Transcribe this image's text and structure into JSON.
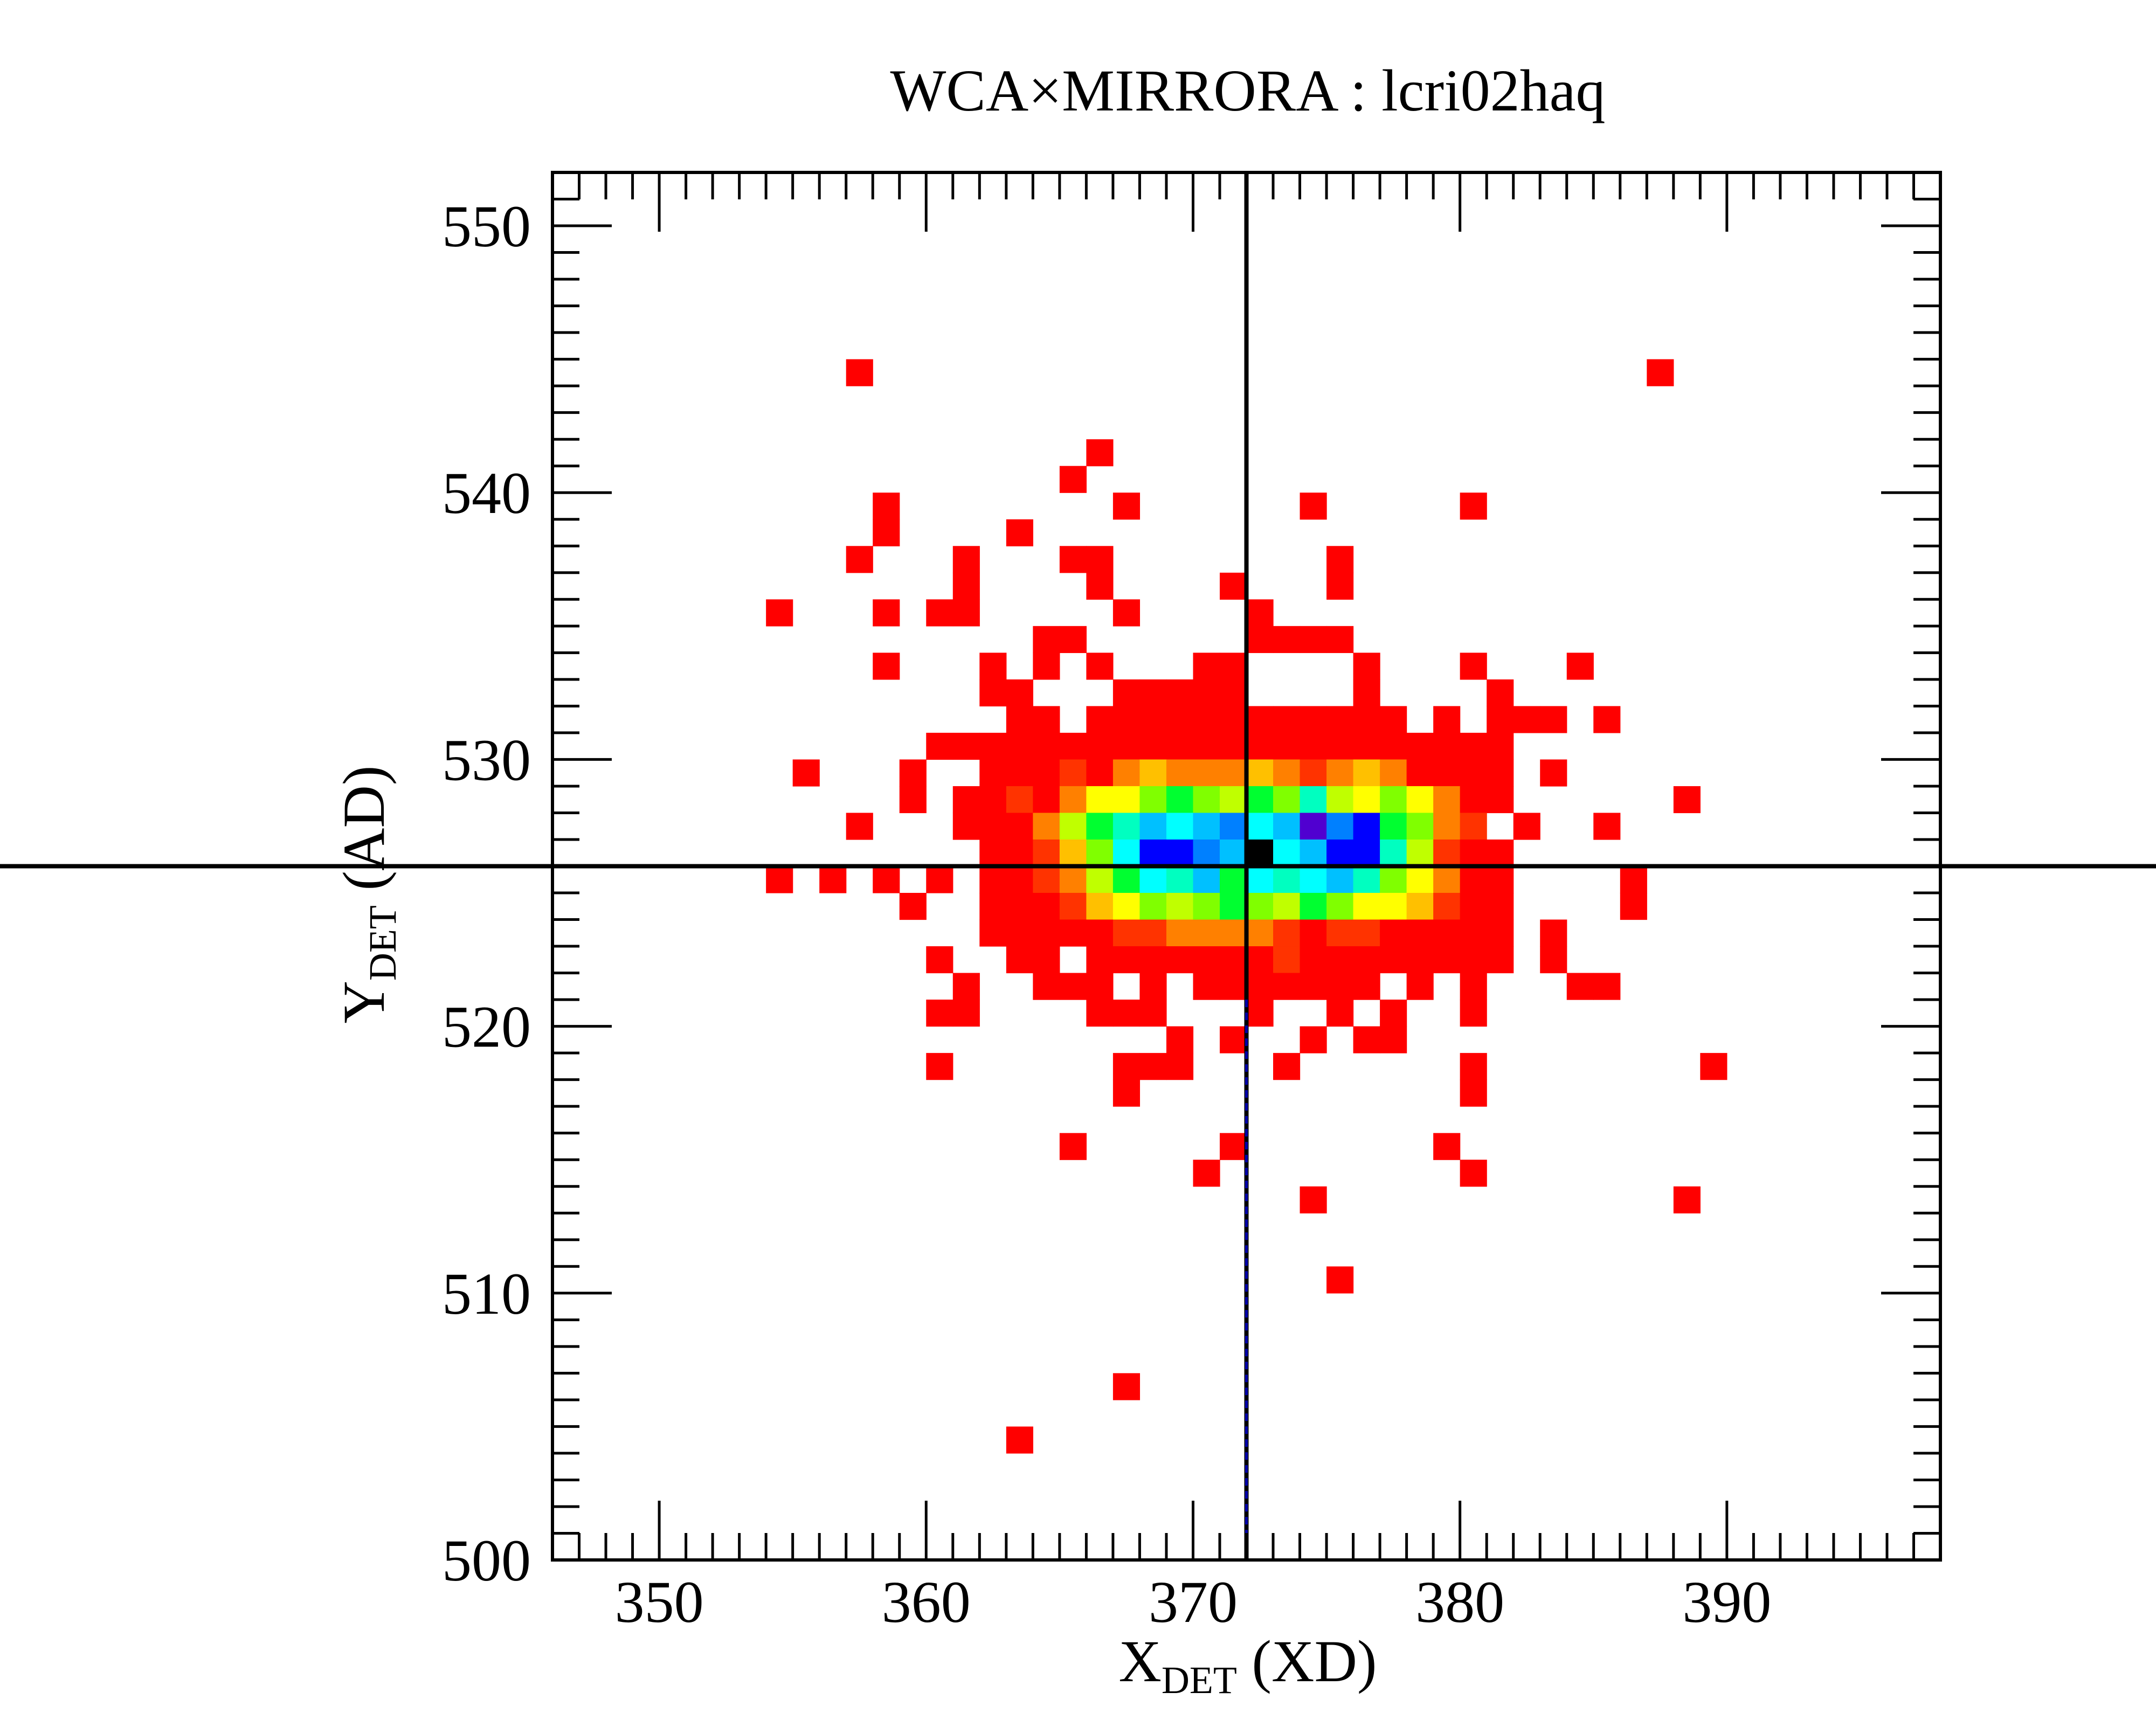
{
  "chart_data": {
    "type": "heatmap",
    "title": "WCA×MIRRORA : lcri02haq",
    "xlabel": {
      "main": "X",
      "sub": "DET",
      "rest": " (XD)"
    },
    "ylabel": {
      "main": "Y",
      "sub": "DET",
      "rest": " (AD)"
    },
    "xlim": [
      346,
      398
    ],
    "ylim": [
      500,
      552
    ],
    "x_ticks": [
      350,
      360,
      370,
      380,
      390
    ],
    "y_ticks": [
      500,
      510,
      520,
      530,
      540,
      550
    ],
    "grid": false,
    "crosshair": {
      "x": 372,
      "y": 526
    },
    "cell_size": 1,
    "palette": {
      "1": "#ff0000",
      "2": "#ff3300",
      "3": "#ff8000",
      "4": "#ffc000",
      "5": "#ffff00",
      "6": "#c0ff00",
      "7": "#80ff00",
      "8": "#00ff30",
      "9": "#00ffc0",
      "10": "#00ffff",
      "11": "#00c0ff",
      "12": "#0080ff",
      "13": "#0000ff",
      "14": "#5000d0",
      "15": "#000000"
    },
    "crosshair_color": "#000000",
    "crosshair_dash_color": "#0000aa",
    "cells": [
      [
        357,
        544,
        1
      ],
      [
        387,
        544,
        1
      ],
      [
        366,
        541,
        1
      ],
      [
        365,
        540,
        1
      ],
      [
        358,
        539,
        1
      ],
      [
        358,
        538,
        1
      ],
      [
        367,
        539,
        1
      ],
      [
        374,
        539,
        1
      ],
      [
        380,
        539,
        1
      ],
      [
        363,
        538,
        1
      ],
      [
        357,
        537,
        1
      ],
      [
        361,
        537,
        1
      ],
      [
        365,
        537,
        1
      ],
      [
        366,
        537,
        1
      ],
      [
        375,
        537,
        1
      ],
      [
        361,
        536,
        1
      ],
      [
        366,
        536,
        1
      ],
      [
        371,
        536,
        1
      ],
      [
        375,
        536,
        1
      ],
      [
        354,
        535,
        1
      ],
      [
        358,
        535,
        1
      ],
      [
        360,
        535,
        1
      ],
      [
        361,
        535,
        1
      ],
      [
        367,
        535,
        1
      ],
      [
        372,
        535,
        1
      ],
      [
        364,
        534,
        1
      ],
      [
        365,
        534,
        1
      ],
      [
        372,
        534,
        1
      ],
      [
        373,
        534,
        1
      ],
      [
        374,
        534,
        1
      ],
      [
        375,
        534,
        1
      ],
      [
        358,
        533,
        1
      ],
      [
        362,
        533,
        1
      ],
      [
        364,
        533,
        1
      ],
      [
        366,
        533,
        1
      ],
      [
        370,
        533,
        1
      ],
      [
        371,
        533,
        1
      ],
      [
        376,
        533,
        1
      ],
      [
        380,
        533,
        1
      ],
      [
        384,
        533,
        1
      ],
      [
        362,
        532,
        1
      ],
      [
        363,
        532,
        1
      ],
      [
        367,
        532,
        1
      ],
      [
        368,
        532,
        1
      ],
      [
        369,
        532,
        1
      ],
      [
        370,
        532,
        1
      ],
      [
        371,
        532,
        1
      ],
      [
        376,
        532,
        1
      ],
      [
        381,
        532,
        1
      ],
      [
        363,
        531,
        1
      ],
      [
        364,
        531,
        1
      ],
      [
        366,
        531,
        1
      ],
      [
        367,
        531,
        1
      ],
      [
        368,
        531,
        1
      ],
      [
        369,
        531,
        1
      ],
      [
        370,
        531,
        1
      ],
      [
        371,
        531,
        1
      ],
      [
        372,
        531,
        1
      ],
      [
        373,
        531,
        1
      ],
      [
        374,
        531,
        1
      ],
      [
        375,
        531,
        1
      ],
      [
        376,
        531,
        1
      ],
      [
        377,
        531,
        1
      ],
      [
        379,
        531,
        1
      ],
      [
        381,
        531,
        1
      ],
      [
        382,
        531,
        1
      ],
      [
        383,
        531,
        1
      ],
      [
        385,
        531,
        1
      ],
      [
        360,
        530,
        1
      ],
      [
        361,
        530,
        1
      ],
      [
        362,
        530,
        1
      ],
      [
        363,
        530,
        1
      ],
      [
        364,
        530,
        1
      ],
      [
        365,
        530,
        1
      ],
      [
        366,
        530,
        1
      ],
      [
        367,
        530,
        1
      ],
      [
        368,
        530,
        1
      ],
      [
        369,
        530,
        1
      ],
      [
        370,
        530,
        1
      ],
      [
        371,
        530,
        1
      ],
      [
        372,
        530,
        1
      ],
      [
        373,
        530,
        1
      ],
      [
        374,
        530,
        1
      ],
      [
        375,
        530,
        1
      ],
      [
        376,
        530,
        1
      ],
      [
        377,
        530,
        1
      ],
      [
        378,
        530,
        1
      ],
      [
        379,
        530,
        1
      ],
      [
        380,
        530,
        1
      ],
      [
        381,
        530,
        1
      ],
      [
        355,
        529,
        1
      ],
      [
        359,
        529,
        1
      ],
      [
        362,
        529,
        1
      ],
      [
        363,
        529,
        1
      ],
      [
        364,
        529,
        1
      ],
      [
        365,
        529,
        2
      ],
      [
        366,
        529,
        1
      ],
      [
        367,
        529,
        3
      ],
      [
        368,
        529,
        4
      ],
      [
        369,
        529,
        3
      ],
      [
        370,
        529,
        3
      ],
      [
        371,
        529,
        3
      ],
      [
        372,
        529,
        4
      ],
      [
        373,
        529,
        3
      ],
      [
        374,
        529,
        2
      ],
      [
        375,
        529,
        3
      ],
      [
        376,
        529,
        4
      ],
      [
        377,
        529,
        3
      ],
      [
        378,
        529,
        1
      ],
      [
        379,
        529,
        1
      ],
      [
        380,
        529,
        1
      ],
      [
        381,
        529,
        1
      ],
      [
        383,
        529,
        1
      ],
      [
        359,
        528,
        1
      ],
      [
        361,
        528,
        1
      ],
      [
        362,
        528,
        1
      ],
      [
        363,
        528,
        2
      ],
      [
        364,
        528,
        1
      ],
      [
        365,
        528,
        3
      ],
      [
        366,
        528,
        5
      ],
      [
        367,
        528,
        5
      ],
      [
        368,
        528,
        7
      ],
      [
        369,
        528,
        8
      ],
      [
        370,
        528,
        7
      ],
      [
        371,
        528,
        6
      ],
      [
        372,
        528,
        8
      ],
      [
        373,
        528,
        7
      ],
      [
        374,
        528,
        9
      ],
      [
        375,
        528,
        6
      ],
      [
        376,
        528,
        5
      ],
      [
        377,
        528,
        7
      ],
      [
        378,
        528,
        5
      ],
      [
        379,
        528,
        3
      ],
      [
        380,
        528,
        1
      ],
      [
        381,
        528,
        1
      ],
      [
        388,
        528,
        1
      ],
      [
        357,
        527,
        1
      ],
      [
        361,
        527,
        1
      ],
      [
        362,
        527,
        1
      ],
      [
        363,
        527,
        1
      ],
      [
        364,
        527,
        3
      ],
      [
        365,
        527,
        6
      ],
      [
        366,
        527,
        8
      ],
      [
        367,
        527,
        9
      ],
      [
        368,
        527,
        11
      ],
      [
        369,
        527,
        10
      ],
      [
        370,
        527,
        11
      ],
      [
        371,
        527,
        12
      ],
      [
        372,
        527,
        10
      ],
      [
        373,
        527,
        11
      ],
      [
        374,
        527,
        14
      ],
      [
        375,
        527,
        12
      ],
      [
        376,
        527,
        13
      ],
      [
        377,
        527,
        8
      ],
      [
        378,
        527,
        7
      ],
      [
        379,
        527,
        3
      ],
      [
        380,
        527,
        2
      ],
      [
        382,
        527,
        1
      ],
      [
        385,
        527,
        1
      ],
      [
        362,
        526,
        1
      ],
      [
        363,
        526,
        1
      ],
      [
        364,
        526,
        2
      ],
      [
        365,
        526,
        4
      ],
      [
        366,
        526,
        7
      ],
      [
        367,
        526,
        10
      ],
      [
        368,
        526,
        13
      ],
      [
        369,
        526,
        13
      ],
      [
        370,
        526,
        12
      ],
      [
        371,
        526,
        11
      ],
      [
        372,
        526,
        15
      ],
      [
        373,
        526,
        10
      ],
      [
        374,
        526,
        11
      ],
      [
        375,
        526,
        13
      ],
      [
        376,
        526,
        13
      ],
      [
        377,
        526,
        9
      ],
      [
        378,
        526,
        6
      ],
      [
        379,
        526,
        2
      ],
      [
        380,
        526,
        1
      ],
      [
        381,
        526,
        1
      ],
      [
        354,
        525,
        1
      ],
      [
        356,
        525,
        1
      ],
      [
        358,
        525,
        1
      ],
      [
        360,
        525,
        1
      ],
      [
        362,
        525,
        1
      ],
      [
        363,
        525,
        1
      ],
      [
        364,
        525,
        2
      ],
      [
        365,
        525,
        3
      ],
      [
        366,
        525,
        6
      ],
      [
        367,
        525,
        8
      ],
      [
        368,
        525,
        10
      ],
      [
        369,
        525,
        9
      ],
      [
        370,
        525,
        11
      ],
      [
        371,
        525,
        8
      ],
      [
        372,
        525,
        10
      ],
      [
        373,
        525,
        9
      ],
      [
        374,
        525,
        10
      ],
      [
        375,
        525,
        11
      ],
      [
        376,
        525,
        9
      ],
      [
        377,
        525,
        7
      ],
      [
        378,
        525,
        5
      ],
      [
        379,
        525,
        3
      ],
      [
        380,
        525,
        1
      ],
      [
        381,
        525,
        1
      ],
      [
        386,
        525,
        1
      ],
      [
        359,
        524,
        1
      ],
      [
        362,
        524,
        1
      ],
      [
        363,
        524,
        1
      ],
      [
        364,
        524,
        1
      ],
      [
        365,
        524,
        2
      ],
      [
        366,
        524,
        4
      ],
      [
        367,
        524,
        5
      ],
      [
        368,
        524,
        7
      ],
      [
        369,
        524,
        6
      ],
      [
        370,
        524,
        7
      ],
      [
        371,
        524,
        8
      ],
      [
        372,
        524,
        7
      ],
      [
        373,
        524,
        6
      ],
      [
        374,
        524,
        8
      ],
      [
        375,
        524,
        7
      ],
      [
        376,
        524,
        5
      ],
      [
        377,
        524,
        5
      ],
      [
        378,
        524,
        4
      ],
      [
        379,
        524,
        2
      ],
      [
        380,
        524,
        1
      ],
      [
        381,
        524,
        1
      ],
      [
        386,
        524,
        1
      ],
      [
        362,
        523,
        1
      ],
      [
        363,
        523,
        1
      ],
      [
        364,
        523,
        1
      ],
      [
        365,
        523,
        1
      ],
      [
        366,
        523,
        1
      ],
      [
        367,
        523,
        2
      ],
      [
        368,
        523,
        2
      ],
      [
        369,
        523,
        3
      ],
      [
        370,
        523,
        3
      ],
      [
        371,
        523,
        3
      ],
      [
        372,
        523,
        3
      ],
      [
        373,
        523,
        2
      ],
      [
        374,
        523,
        1
      ],
      [
        375,
        523,
        2
      ],
      [
        376,
        523,
        2
      ],
      [
        377,
        523,
        1
      ],
      [
        378,
        523,
        1
      ],
      [
        379,
        523,
        1
      ],
      [
        380,
        523,
        1
      ],
      [
        381,
        523,
        1
      ],
      [
        383,
        523,
        1
      ],
      [
        360,
        522,
        1
      ],
      [
        363,
        522,
        1
      ],
      [
        364,
        522,
        1
      ],
      [
        366,
        522,
        1
      ],
      [
        367,
        522,
        1
      ],
      [
        368,
        522,
        1
      ],
      [
        369,
        522,
        1
      ],
      [
        370,
        522,
        1
      ],
      [
        371,
        522,
        1
      ],
      [
        372,
        522,
        1
      ],
      [
        373,
        522,
        2
      ],
      [
        374,
        522,
        1
      ],
      [
        375,
        522,
        1
      ],
      [
        376,
        522,
        1
      ],
      [
        377,
        522,
        1
      ],
      [
        378,
        522,
        1
      ],
      [
        379,
        522,
        1
      ],
      [
        380,
        522,
        1
      ],
      [
        381,
        522,
        1
      ],
      [
        383,
        522,
        1
      ],
      [
        361,
        521,
        1
      ],
      [
        364,
        521,
        1
      ],
      [
        365,
        521,
        1
      ],
      [
        366,
        521,
        1
      ],
      [
        368,
        521,
        1
      ],
      [
        370,
        521,
        1
      ],
      [
        371,
        521,
        1
      ],
      [
        372,
        521,
        1
      ],
      [
        373,
        521,
        1
      ],
      [
        374,
        521,
        1
      ],
      [
        375,
        521,
        1
      ],
      [
        376,
        521,
        1
      ],
      [
        378,
        521,
        1
      ],
      [
        380,
        521,
        1
      ],
      [
        384,
        521,
        1
      ],
      [
        385,
        521,
        1
      ],
      [
        360,
        520,
        1
      ],
      [
        361,
        520,
        1
      ],
      [
        366,
        520,
        1
      ],
      [
        367,
        520,
        1
      ],
      [
        368,
        520,
        1
      ],
      [
        372,
        520,
        1
      ],
      [
        375,
        520,
        1
      ],
      [
        377,
        520,
        1
      ],
      [
        380,
        520,
        1
      ],
      [
        369,
        519,
        1
      ],
      [
        371,
        519,
        1
      ],
      [
        374,
        519,
        1
      ],
      [
        376,
        519,
        1
      ],
      [
        377,
        519,
        1
      ],
      [
        360,
        518,
        1
      ],
      [
        367,
        518,
        1
      ],
      [
        368,
        518,
        1
      ],
      [
        369,
        518,
        1
      ],
      [
        373,
        518,
        1
      ],
      [
        380,
        518,
        1
      ],
      [
        389,
        518,
        1
      ],
      [
        367,
        517,
        1
      ],
      [
        380,
        517,
        1
      ],
      [
        365,
        515,
        1
      ],
      [
        371,
        515,
        1
      ],
      [
        379,
        515,
        1
      ],
      [
        370,
        514,
        1
      ],
      [
        380,
        514,
        1
      ],
      [
        374,
        513,
        1
      ],
      [
        388,
        513,
        1
      ],
      [
        375,
        510,
        1
      ],
      [
        367,
        506,
        1
      ],
      [
        363,
        504,
        1
      ]
    ]
  }
}
